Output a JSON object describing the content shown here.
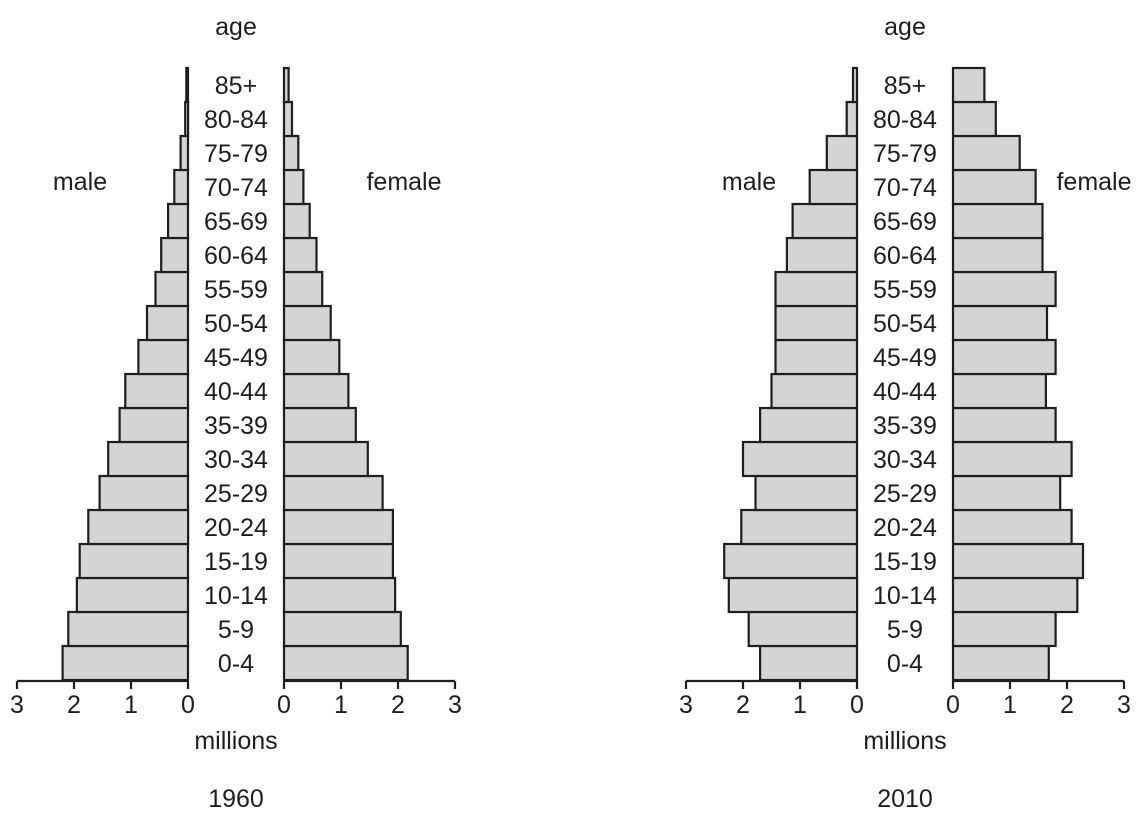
{
  "chart_data": [
    {
      "type": "bar",
      "title": "1960",
      "ylabel": "age",
      "xlabel": "millions",
      "categories": [
        "0-4",
        "5-9",
        "10-14",
        "15-19",
        "20-24",
        "25-29",
        "30-34",
        "35-39",
        "40-44",
        "45-49",
        "50-54",
        "55-59",
        "60-64",
        "65-69",
        "70-74",
        "75-79",
        "80-84",
        "85+"
      ],
      "series": [
        {
          "name": "male",
          "values": [
            2.2,
            2.1,
            1.95,
            1.9,
            1.75,
            1.55,
            1.4,
            1.2,
            1.1,
            0.87,
            0.72,
            0.57,
            0.47,
            0.35,
            0.24,
            0.13,
            0.05,
            0.03
          ]
        },
        {
          "name": "female",
          "values": [
            2.17,
            2.05,
            1.95,
            1.91,
            1.91,
            1.73,
            1.47,
            1.26,
            1.13,
            0.97,
            0.82,
            0.67,
            0.57,
            0.45,
            0.34,
            0.25,
            0.14,
            0.08
          ]
        }
      ],
      "xlim": [
        0,
        3
      ],
      "xticks": [
        "3",
        "2",
        "1",
        "0",
        "0",
        "1",
        "2",
        "3"
      ]
    },
    {
      "type": "bar",
      "title": "2010",
      "ylabel": "age",
      "xlabel": "millions",
      "categories": [
        "0-4",
        "5-9",
        "10-14",
        "15-19",
        "20-24",
        "25-29",
        "30-34",
        "35-39",
        "40-44",
        "45-49",
        "50-54",
        "55-59",
        "60-64",
        "65-69",
        "70-74",
        "75-79",
        "80-84",
        "85+"
      ],
      "series": [
        {
          "name": "male",
          "values": [
            1.7,
            1.9,
            2.25,
            2.33,
            2.03,
            1.78,
            2.0,
            1.7,
            1.5,
            1.43,
            1.43,
            1.43,
            1.23,
            1.13,
            0.83,
            0.53,
            0.18,
            0.07
          ]
        },
        {
          "name": "female",
          "values": [
            1.68,
            1.8,
            2.18,
            2.28,
            2.08,
            1.88,
            2.08,
            1.8,
            1.63,
            1.8,
            1.65,
            1.8,
            1.57,
            1.57,
            1.45,
            1.17,
            0.75,
            0.55
          ]
        }
      ],
      "xlim": [
        0,
        3
      ],
      "xticks": [
        "3",
        "2",
        "1",
        "0",
        "0",
        "1",
        "2",
        "3"
      ]
    }
  ]
}
